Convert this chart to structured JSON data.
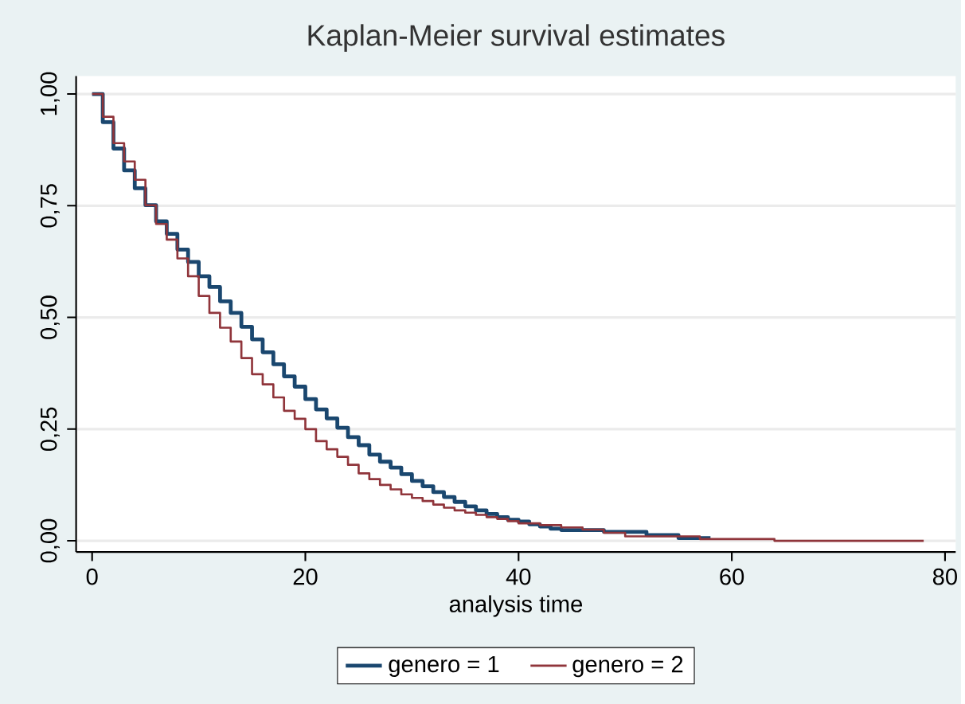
{
  "chart_data": {
    "type": "step",
    "title": "Kaplan-Meier survival estimates",
    "xlabel": "analysis time",
    "xlim": [
      -1.5,
      81
    ],
    "xticks": [
      0,
      20,
      40,
      60,
      80
    ],
    "ylim": [
      -0.025,
      1.04
    ],
    "yticks": [
      {
        "value": 0,
        "label": "0,00"
      },
      {
        "value": 0.25,
        "label": "0,25"
      },
      {
        "value": 0.5,
        "label": "0,50"
      },
      {
        "value": 0.75,
        "label": "0,75"
      },
      {
        "value": 1,
        "label": "1,00"
      }
    ],
    "grid": "y",
    "legend": "bottom",
    "marker": "none",
    "line_style": "solid",
    "series": [
      {
        "name": "genero = 1",
        "color": "#1a476f",
        "x": [
          0,
          1,
          2,
          3,
          4,
          5,
          6,
          7,
          8,
          9,
          10,
          11,
          12,
          13,
          14,
          15,
          16,
          17,
          18,
          19,
          20,
          21,
          22,
          23,
          24,
          25,
          26,
          27,
          28,
          29,
          30,
          31,
          32,
          33,
          34,
          35,
          36,
          37,
          38,
          39,
          40,
          41,
          42,
          43,
          44,
          48,
          52,
          55,
          58
        ],
        "values": [
          1,
          0.937,
          0.878,
          0.829,
          0.789,
          0.751,
          0.715,
          0.687,
          0.652,
          0.624,
          0.592,
          0.568,
          0.536,
          0.51,
          0.479,
          0.451,
          0.422,
          0.395,
          0.368,
          0.345,
          0.317,
          0.294,
          0.274,
          0.253,
          0.232,
          0.214,
          0.193,
          0.177,
          0.164,
          0.149,
          0.134,
          0.122,
          0.109,
          0.098,
          0.087,
          0.077,
          0.068,
          0.06,
          0.053,
          0.047,
          0.043,
          0.037,
          0.032,
          0.027,
          0.024,
          0.02,
          0.013,
          0.006,
          0.006
        ]
      },
      {
        "name": "genero = 2",
        "color": "#90353b",
        "x": [
          0,
          1,
          2,
          3,
          4,
          5,
          6,
          7,
          8,
          9,
          10,
          11,
          12,
          13,
          14,
          15,
          16,
          17,
          18,
          19,
          20,
          21,
          22,
          23,
          24,
          25,
          26,
          27,
          28,
          29,
          30,
          31,
          32,
          33,
          34,
          35,
          36,
          37,
          38,
          39,
          40,
          42,
          44,
          46,
          48,
          50,
          57,
          64,
          78
        ],
        "values": [
          1,
          0.949,
          0.89,
          0.849,
          0.808,
          0.751,
          0.709,
          0.674,
          0.632,
          0.592,
          0.548,
          0.51,
          0.477,
          0.446,
          0.409,
          0.373,
          0.35,
          0.321,
          0.291,
          0.273,
          0.25,
          0.223,
          0.205,
          0.188,
          0.17,
          0.151,
          0.138,
          0.125,
          0.115,
          0.104,
          0.096,
          0.089,
          0.081,
          0.074,
          0.068,
          0.063,
          0.058,
          0.053,
          0.049,
          0.044,
          0.039,
          0.035,
          0.03,
          0.025,
          0.018,
          0.01,
          0.004,
          0,
          0
        ]
      }
    ]
  }
}
